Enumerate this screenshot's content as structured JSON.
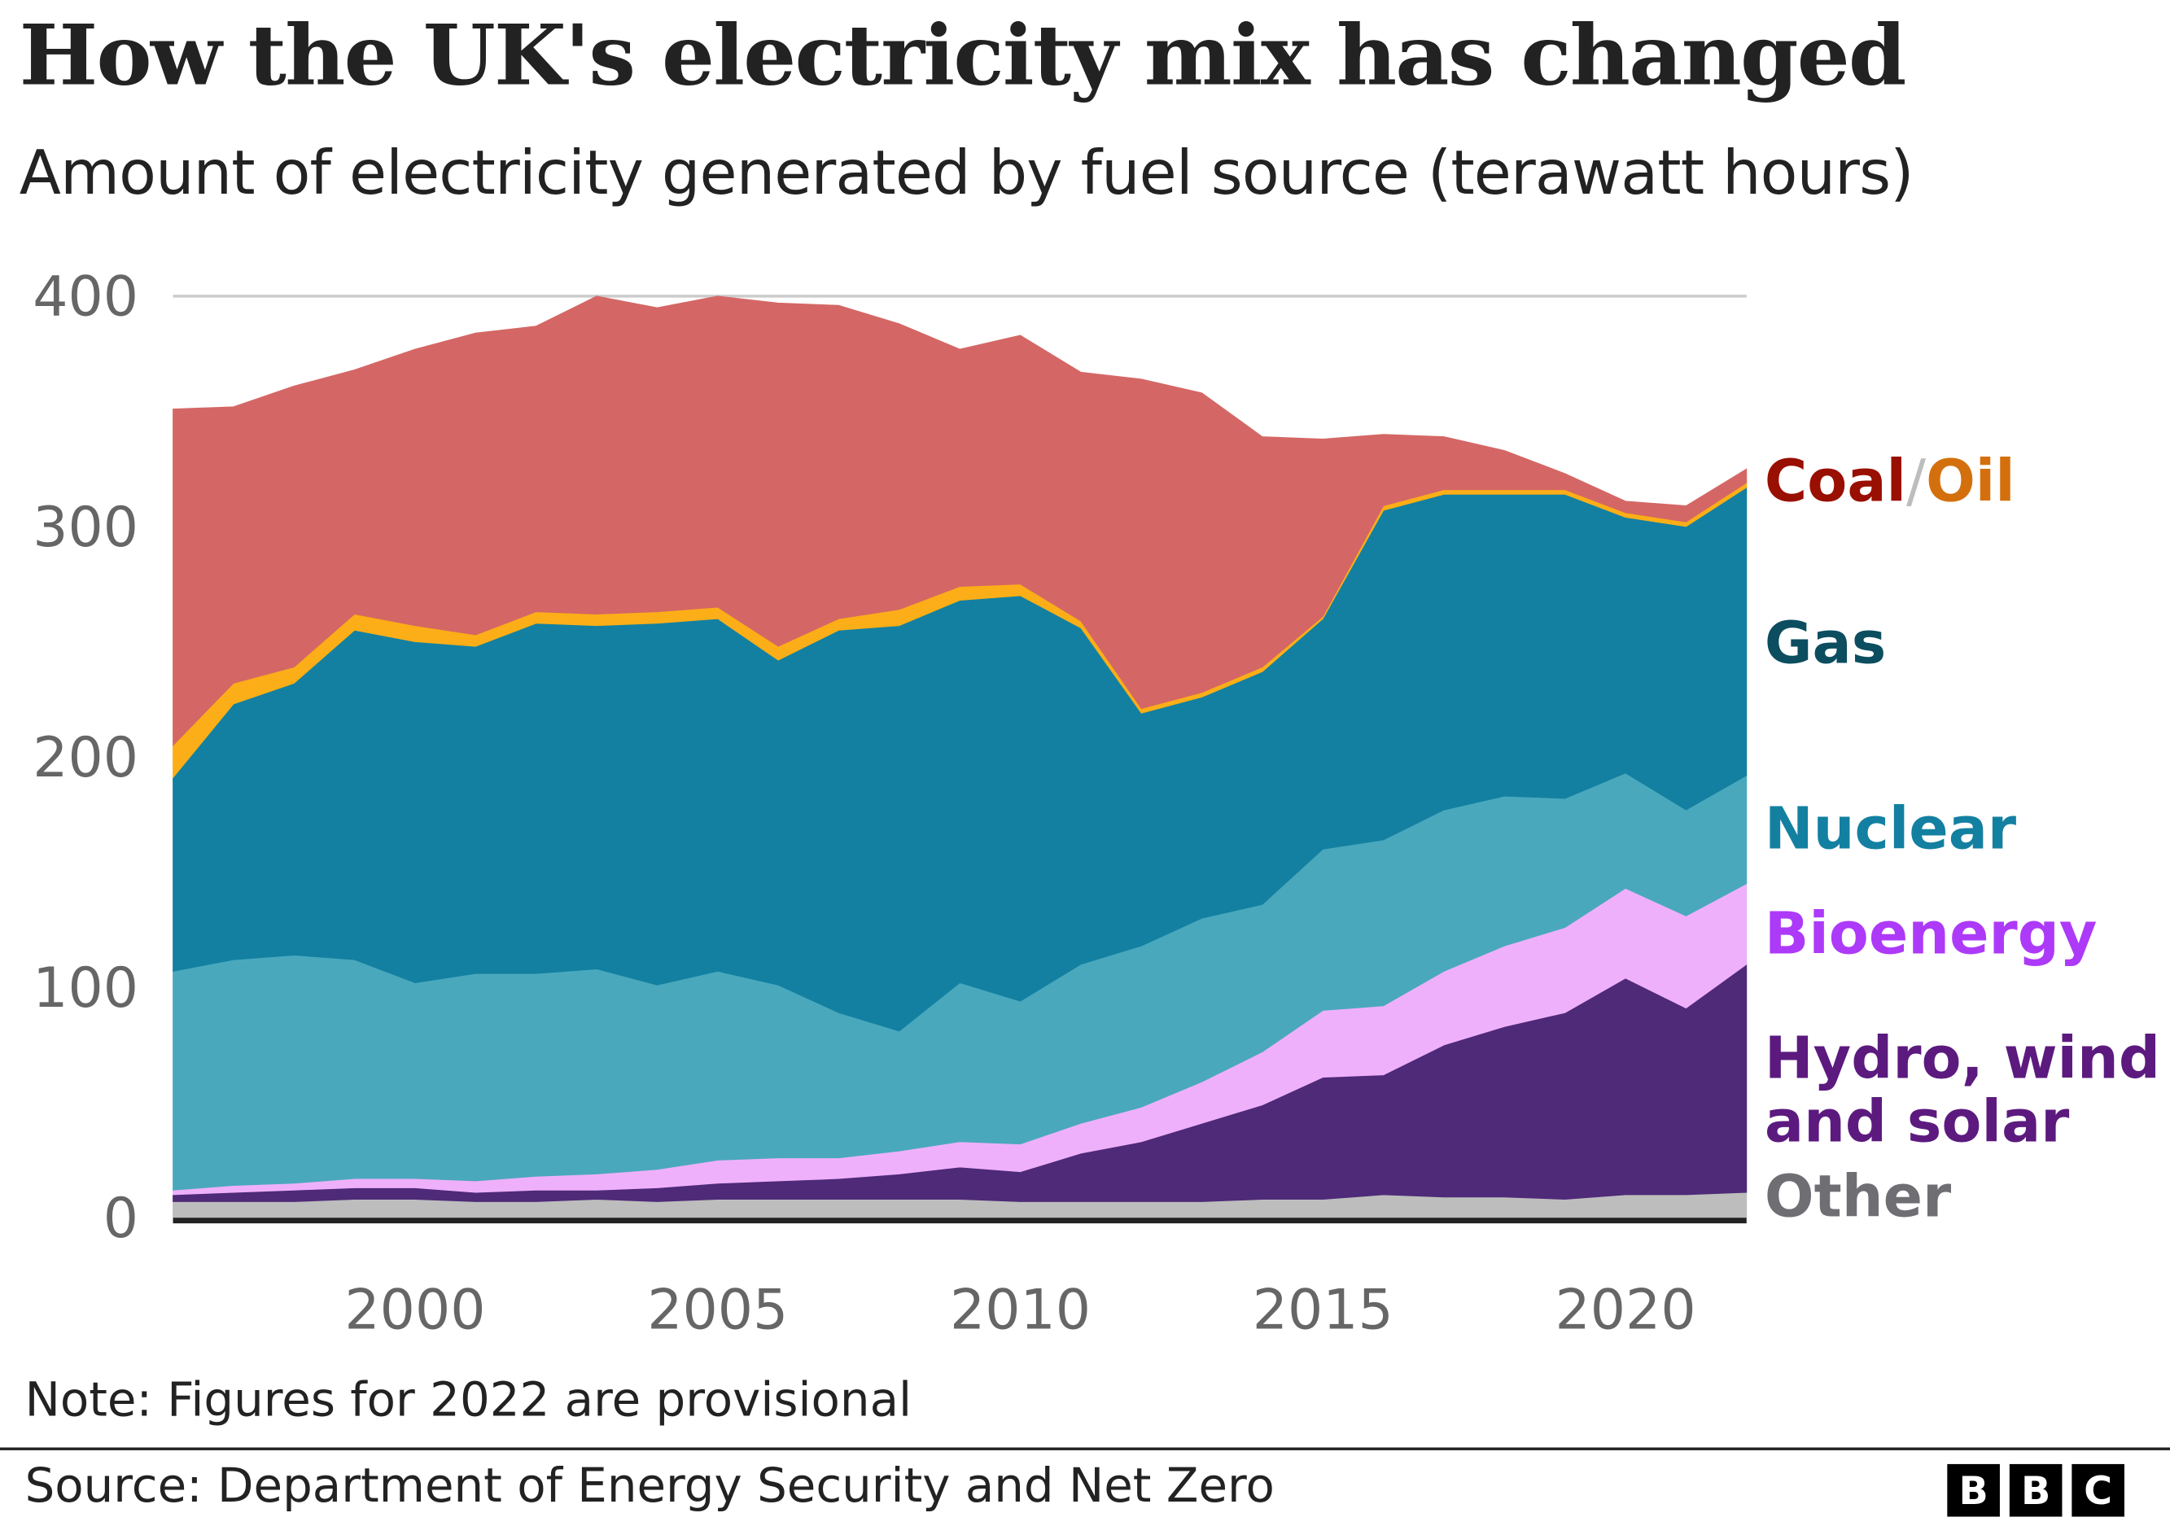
{
  "header": {
    "title": "How the UK's electricity mix has changed",
    "subtitle": "Amount of electricity generated by fuel source (terawatt hours)"
  },
  "chart_data": {
    "type": "area",
    "stacked": true,
    "x": [
      1996,
      1997,
      1998,
      1999,
      2000,
      2001,
      2002,
      2003,
      2004,
      2005,
      2006,
      2007,
      2008,
      2009,
      2010,
      2011,
      2012,
      2013,
      2014,
      2015,
      2016,
      2017,
      2018,
      2019,
      2020,
      2021,
      2022
    ],
    "xticks": [
      "2000",
      "2005",
      "2010",
      "2015",
      "2020"
    ],
    "yticks": [
      "0",
      "100",
      "200",
      "300",
      "400"
    ],
    "ylim": [
      0,
      400
    ],
    "grid": true,
    "legend": "direct labels right",
    "series": [
      {
        "name": "Other",
        "color": "#bdbdbd",
        "label_color": "#6e6e73",
        "values": [
          7,
          7,
          7,
          8,
          8,
          7,
          7,
          8,
          7,
          8,
          8,
          8,
          8,
          8,
          7,
          7,
          7,
          7,
          8,
          8,
          10,
          9,
          9,
          8,
          10,
          10,
          11
        ]
      },
      {
        "name": "Hydro, wind and solar",
        "color": "#4e2a78",
        "label_color": "#5c1a7f",
        "values": [
          3,
          4,
          5,
          5,
          5,
          4,
          5,
          4,
          6,
          7,
          8,
          9,
          11,
          14,
          13,
          21,
          26,
          34,
          41,
          53,
          52,
          66,
          74,
          81,
          94,
          81,
          99
        ]
      },
      {
        "name": "Bioenergy",
        "color": "#efb0fb",
        "label_color": "#ad3af8",
        "values": [
          2,
          3,
          3,
          4,
          4,
          5,
          6,
          7,
          8,
          10,
          10,
          9,
          10,
          11,
          12,
          13,
          15,
          18,
          23,
          29,
          30,
          32,
          35,
          37,
          39,
          40,
          35
        ]
      },
      {
        "name": "Nuclear",
        "color": "#4aa8bd",
        "label_color": "#1380a1",
        "values": [
          95,
          98,
          99,
          95,
          85,
          90,
          88,
          89,
          80,
          82,
          75,
          63,
          52,
          69,
          62,
          69,
          70,
          71,
          64,
          70,
          72,
          70,
          65,
          56,
          50,
          46,
          47
        ]
      },
      {
        "name": "Gas",
        "color": "#1380a1",
        "label_color": "#0c4d60",
        "values": [
          84,
          111,
          118,
          143,
          148,
          142,
          152,
          149,
          157,
          153,
          141,
          166,
          176,
          166,
          176,
          146,
          101,
          96,
          101,
          100,
          143,
          137,
          131,
          132,
          111,
          123,
          125
        ]
      },
      {
        "name": "Oil",
        "color": "#fbae17",
        "label_color": "#d3700d",
        "values": [
          14,
          9,
          7,
          7,
          7,
          5,
          5,
          5,
          5,
          5,
          6,
          5,
          7,
          6,
          5,
          3,
          2,
          2,
          2,
          1,
          2,
          2,
          2,
          2,
          2,
          2,
          2
        ]
      },
      {
        "name": "Coal",
        "color": "#d46765",
        "label_color": "#990f02",
        "values": [
          146,
          120,
          122,
          106,
          120,
          131,
          124,
          138,
          132,
          135,
          149,
          136,
          124,
          103,
          108,
          108,
          143,
          130,
          100,
          77,
          31,
          23,
          17,
          7,
          5,
          7,
          6
        ]
      }
    ]
  },
  "labels": {
    "coal": "Coal",
    "slash": "/",
    "oil": "Oil",
    "gas": "Gas",
    "nuclear": "Nuclear",
    "bioenergy": "Bioenergy",
    "hydro_line1": "Hydro, wind",
    "hydro_line2": "and solar",
    "other": "Other"
  },
  "footer": {
    "note": "Note: Figures for 2022 are provisional",
    "source": "Source: Department of Energy Security and Net Zero",
    "logo": [
      "B",
      "B",
      "C"
    ]
  }
}
